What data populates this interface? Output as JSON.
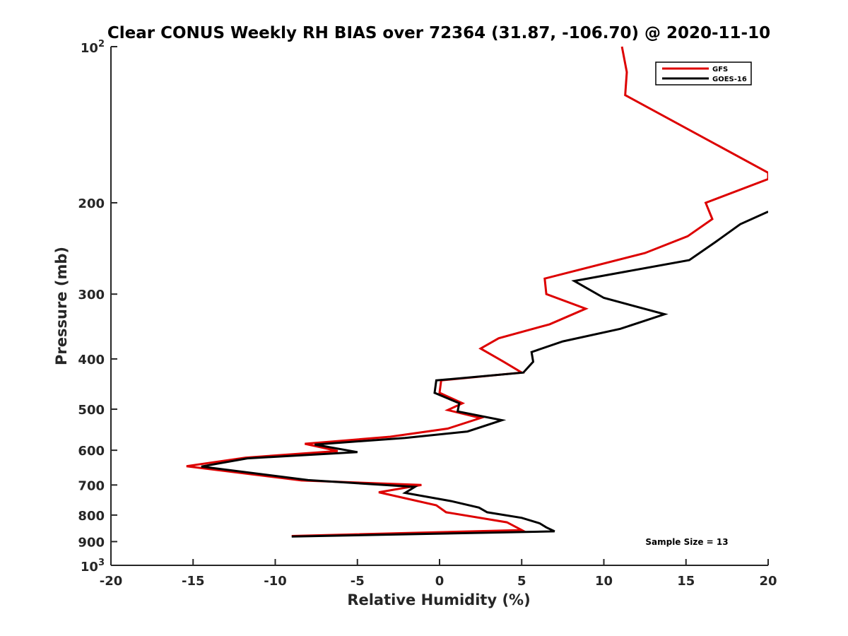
{
  "chart_data": {
    "type": "line",
    "title": "Clear CONUS Weekly RH BIAS over 72364 (31.87, -106.70) @ 2020-11-10",
    "xlabel": "Relative Humidity (%)",
    "ylabel": "Pressure (mb)",
    "xlim": [
      -20,
      20
    ],
    "ylim": [
      100,
      1000
    ],
    "yscale": "log",
    "y_reversed": true,
    "x_ticks": [
      "-20",
      "-15",
      "-10",
      "-5",
      "0",
      "5",
      "10",
      "15",
      "20"
    ],
    "y_ticks": [
      {
        "value": 200,
        "label": "200"
      },
      {
        "value": 300,
        "label": "300"
      },
      {
        "value": 400,
        "label": "400"
      },
      {
        "value": 500,
        "label": "500"
      },
      {
        "value": 600,
        "label": "600"
      },
      {
        "value": 700,
        "label": "700"
      },
      {
        "value": 800,
        "label": "800"
      },
      {
        "value": 900,
        "label": "900"
      }
    ],
    "y_end_labels": {
      "top": {
        "base": "10",
        "exp": "2",
        "value": 100
      },
      "bottom": {
        "base": "10",
        "exp": "3",
        "value": 1000
      }
    },
    "legend_position": "top-right",
    "grid": false,
    "annotation": "Sample Size = 13",
    "series": [
      {
        "name": "GFS",
        "color": "#dd0000",
        "points": [
          [
            11.1,
            100
          ],
          [
            11.4,
            112
          ],
          [
            11.3,
            124
          ],
          [
            20.0,
            175
          ],
          [
            20.0,
            180
          ],
          [
            16.2,
            200
          ],
          [
            16.6,
            215
          ],
          [
            15.1,
            232
          ],
          [
            12.5,
            250
          ],
          [
            6.4,
            280
          ],
          [
            6.5,
            300
          ],
          [
            8.9,
            320
          ],
          [
            6.7,
            343
          ],
          [
            3.6,
            365
          ],
          [
            2.5,
            382
          ],
          [
            3.9,
            405
          ],
          [
            5.0,
            425
          ],
          [
            0.1,
            440
          ],
          [
            0.0,
            465
          ],
          [
            1.4,
            487
          ],
          [
            0.5,
            502
          ],
          [
            2.5,
            520
          ],
          [
            0.5,
            545
          ],
          [
            -3.0,
            565
          ],
          [
            -8.2,
            583
          ],
          [
            -6.2,
            602
          ],
          [
            -11.8,
            620
          ],
          [
            -15.4,
            644
          ],
          [
            -8.4,
            686
          ],
          [
            -1.1,
            700
          ],
          [
            -3.7,
            723
          ],
          [
            -0.2,
            766
          ],
          [
            0.4,
            790
          ],
          [
            4.1,
            826
          ],
          [
            5.0,
            855
          ],
          [
            -9.0,
            878
          ]
        ]
      },
      {
        "name": "GOES-16",
        "color": "#000000",
        "points": [
          [
            20.0,
            208
          ],
          [
            18.3,
            220
          ],
          [
            16.8,
            238
          ],
          [
            15.2,
            258
          ],
          [
            8.2,
            283
          ],
          [
            10.0,
            305
          ],
          [
            13.7,
            328
          ],
          [
            11.0,
            350
          ],
          [
            7.5,
            370
          ],
          [
            5.6,
            388
          ],
          [
            5.7,
            405
          ],
          [
            5.1,
            425
          ],
          [
            -0.2,
            440
          ],
          [
            -0.3,
            465
          ],
          [
            1.2,
            487
          ],
          [
            1.1,
            505
          ],
          [
            3.8,
            525
          ],
          [
            1.7,
            552
          ],
          [
            -2.1,
            568
          ],
          [
            -7.6,
            585
          ],
          [
            -5.0,
            605
          ],
          [
            -11.7,
            622
          ],
          [
            -14.5,
            645
          ],
          [
            -8.0,
            685
          ],
          [
            -1.5,
            706
          ],
          [
            -2.1,
            725
          ],
          [
            0.7,
            752
          ],
          [
            2.4,
            774
          ],
          [
            2.9,
            790
          ],
          [
            5.0,
            810
          ],
          [
            6.1,
            830
          ],
          [
            6.5,
            845
          ],
          [
            7.0,
            860
          ],
          [
            -9.0,
            880
          ]
        ]
      }
    ]
  }
}
